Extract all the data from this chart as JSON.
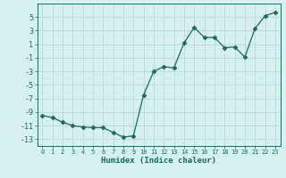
{
  "x": [
    0,
    1,
    2,
    3,
    4,
    5,
    6,
    7,
    8,
    9,
    10,
    11,
    12,
    13,
    14,
    15,
    16,
    17,
    18,
    19,
    20,
    21,
    22,
    23
  ],
  "y": [
    -9.5,
    -9.8,
    -10.5,
    -11.0,
    -11.2,
    -11.3,
    -11.3,
    -12.0,
    -12.7,
    -12.5,
    -6.5,
    -3.0,
    -2.3,
    -2.5,
    1.2,
    3.5,
    2.0,
    2.0,
    0.5,
    0.6,
    -0.9,
    3.3,
    5.2,
    5.7
  ],
  "line_color": "#1a6b5a",
  "marker": "D",
  "marker_size": 2.5,
  "bg_color": "#d6f0ee",
  "grid_color": "#b8d8d5",
  "xlabel": "Humidex (Indice chaleur)",
  "xlim": [
    -0.5,
    23.5
  ],
  "ylim": [
    -14,
    7
  ],
  "xticks": [
    0,
    1,
    2,
    3,
    4,
    5,
    6,
    7,
    8,
    9,
    10,
    11,
    12,
    13,
    14,
    15,
    16,
    17,
    18,
    19,
    20,
    21,
    22,
    23
  ],
  "yticks": [
    -13,
    -11,
    -9,
    -7,
    -5,
    -3,
    -1,
    1,
    3,
    5
  ],
  "xlabel_fontsize": 6.5,
  "ytick_fontsize": 6,
  "xtick_fontsize": 5
}
